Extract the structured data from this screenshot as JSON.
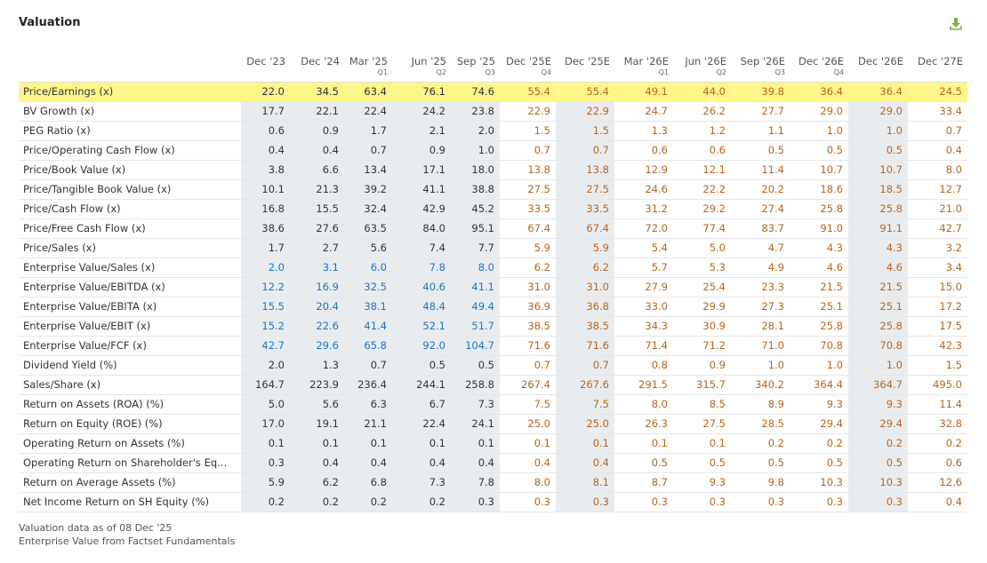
{
  "title": "Valuation",
  "download_icon": "download-icon",
  "colors": {
    "highlight_row": "#fff68a",
    "estimate_text": "#b5651d",
    "link_text": "#1a73c8",
    "shaded_column": "#e9ecef"
  },
  "columns": [
    {
      "label": "Dec '23",
      "sub": ""
    },
    {
      "label": "Dec '24",
      "sub": ""
    },
    {
      "label": "Mar '25",
      "sub": "Q1"
    },
    {
      "label": "Jun '25",
      "sub": "Q2"
    },
    {
      "label": "Sep '25",
      "sub": "Q3"
    },
    {
      "label": "Dec '25E",
      "sub": "Q4"
    },
    {
      "label": "Dec '25E",
      "sub": ""
    },
    {
      "label": "Mar '26E",
      "sub": "Q1"
    },
    {
      "label": "Jun '26E",
      "sub": "Q2"
    },
    {
      "label": "Sep '26E",
      "sub": "Q3"
    },
    {
      "label": "Dec '26E",
      "sub": "Q4"
    },
    {
      "label": "Dec '26E",
      "sub": ""
    },
    {
      "label": "Dec '27E",
      "sub": ""
    }
  ],
  "rows": [
    {
      "label": "Price/Earnings (x)",
      "values": [
        "22.0",
        "34.5",
        "63.4",
        "76.1",
        "74.6",
        "55.4",
        "55.4",
        "49.1",
        "44.0",
        "39.8",
        "36.4",
        "36.4",
        "24.5"
      ],
      "highlight": true
    },
    {
      "label": "BV Growth (x)",
      "values": [
        "17.7",
        "22.1",
        "22.4",
        "24.2",
        "23.8",
        "22.9",
        "22.9",
        "24.7",
        "26.2",
        "27.7",
        "29.0",
        "29.0",
        "33.4"
      ]
    },
    {
      "label": "PEG Ratio (x)",
      "values": [
        "0.6",
        "0.9",
        "1.7",
        "2.1",
        "2.0",
        "1.5",
        "1.5",
        "1.3",
        "1.2",
        "1.1",
        "1.0",
        "1.0",
        "0.7"
      ]
    },
    {
      "label": "Price/Operating Cash Flow (x)",
      "values": [
        "0.4",
        "0.4",
        "0.7",
        "0.9",
        "1.0",
        "0.7",
        "0.7",
        "0.6",
        "0.6",
        "0.5",
        "0.5",
        "0.5",
        "0.4"
      ]
    },
    {
      "label": "Price/Book Value (x)",
      "values": [
        "3.8",
        "6.6",
        "13.4",
        "17.1",
        "18.0",
        "13.8",
        "13.8",
        "12.9",
        "12.1",
        "11.4",
        "10.7",
        "10.7",
        "8.0"
      ]
    },
    {
      "label": "Price/Tangible Book Value (x)",
      "values": [
        "10.1",
        "21.3",
        "39.2",
        "41.1",
        "38.8",
        "27.5",
        "27.5",
        "24.6",
        "22.2",
        "20.2",
        "18.6",
        "18.5",
        "12.7"
      ]
    },
    {
      "label": "Price/Cash Flow (x)",
      "values": [
        "16.8",
        "15.5",
        "32.4",
        "42.9",
        "45.2",
        "33.5",
        "33.5",
        "31.2",
        "29.2",
        "27.4",
        "25.8",
        "25.8",
        "21.0"
      ]
    },
    {
      "label": "Price/Free Cash Flow (x)",
      "values": [
        "38.6",
        "27.6",
        "63.5",
        "84.0",
        "95.1",
        "67.4",
        "67.4",
        "72.0",
        "77.4",
        "83.7",
        "91.0",
        "91.1",
        "42.7"
      ]
    },
    {
      "label": "Price/Sales (x)",
      "values": [
        "1.7",
        "2.7",
        "5.6",
        "7.4",
        "7.7",
        "5.9",
        "5.9",
        "5.4",
        "5.0",
        "4.7",
        "4.3",
        "4.3",
        "3.2"
      ]
    },
    {
      "label": "Enterprise Value/Sales (x)",
      "values": [
        "2.0",
        "3.1",
        "6.0",
        "7.8",
        "8.0",
        "6.2",
        "6.2",
        "5.7",
        "5.3",
        "4.9",
        "4.6",
        "4.6",
        "3.4"
      ],
      "link": true
    },
    {
      "label": "Enterprise Value/EBITDA (x)",
      "values": [
        "12.2",
        "16.9",
        "32.5",
        "40.6",
        "41.1",
        "31.0",
        "31.0",
        "27.9",
        "25.4",
        "23.3",
        "21.5",
        "21.5",
        "15.0"
      ],
      "link": true
    },
    {
      "label": "Enterprise Value/EBITA (x)",
      "values": [
        "15.5",
        "20.4",
        "38.1",
        "48.4",
        "49.4",
        "36.9",
        "36.8",
        "33.0",
        "29.9",
        "27.3",
        "25.1",
        "25.1",
        "17.2"
      ],
      "link": true
    },
    {
      "label": "Enterprise Value/EBIT (x)",
      "values": [
        "15.2",
        "22.6",
        "41.4",
        "52.1",
        "51.7",
        "38.5",
        "38.5",
        "34.3",
        "30.9",
        "28.1",
        "25.8",
        "25.8",
        "17.5"
      ],
      "link": true
    },
    {
      "label": "Enterprise Value/FCF (x)",
      "values": [
        "42.7",
        "29.6",
        "65.8",
        "92.0",
        "104.7",
        "71.6",
        "71.6",
        "71.4",
        "71.2",
        "71.0",
        "70.8",
        "70.8",
        "42.3"
      ],
      "link": true
    },
    {
      "label": "Dividend Yield (%)",
      "values": [
        "2.0",
        "1.3",
        "0.7",
        "0.5",
        "0.5",
        "0.7",
        "0.7",
        "0.8",
        "0.9",
        "1.0",
        "1.0",
        "1.0",
        "1.5"
      ]
    },
    {
      "label": "Sales/Share (x)",
      "values": [
        "164.7",
        "223.9",
        "236.4",
        "244.1",
        "258.8",
        "267.4",
        "267.6",
        "291.5",
        "315.7",
        "340.2",
        "364.4",
        "364.7",
        "495.0"
      ]
    },
    {
      "label": "Return on Assets (ROA) (%)",
      "values": [
        "5.0",
        "5.6",
        "6.3",
        "6.7",
        "7.3",
        "7.5",
        "7.5",
        "8.0",
        "8.5",
        "8.9",
        "9.3",
        "9.3",
        "11.4"
      ]
    },
    {
      "label": "Return on Equity (ROE) (%)",
      "values": [
        "17.0",
        "19.1",
        "21.1",
        "22.4",
        "24.1",
        "25.0",
        "25.0",
        "26.3",
        "27.5",
        "28.5",
        "29.4",
        "29.4",
        "32.8"
      ]
    },
    {
      "label": "Operating Return on Assets (%)",
      "values": [
        "0.1",
        "0.1",
        "0.1",
        "0.1",
        "0.1",
        "0.1",
        "0.1",
        "0.1",
        "0.1",
        "0.2",
        "0.2",
        "0.2",
        "0.2"
      ]
    },
    {
      "label": "Operating Return on Shareholder's Eq...",
      "values": [
        "0.3",
        "0.4",
        "0.4",
        "0.4",
        "0.4",
        "0.4",
        "0.4",
        "0.5",
        "0.5",
        "0.5",
        "0.5",
        "0.5",
        "0.6"
      ]
    },
    {
      "label": "Return on Average Assets (%)",
      "values": [
        "5.9",
        "6.2",
        "6.8",
        "7.3",
        "7.8",
        "8.0",
        "8.1",
        "8.7",
        "9.3",
        "9.8",
        "10.3",
        "10.3",
        "12.6"
      ]
    },
    {
      "label": "Net Income Return on SH Equity (%)",
      "values": [
        "0.2",
        "0.2",
        "0.2",
        "0.2",
        "0.3",
        "0.3",
        "0.3",
        "0.3",
        "0.3",
        "0.3",
        "0.3",
        "0.3",
        "0.4"
      ]
    }
  ],
  "footer": {
    "line1": "Valuation data as of 08 Dec '25",
    "line2": "Enterprise Value from Factset Fundamentals"
  }
}
